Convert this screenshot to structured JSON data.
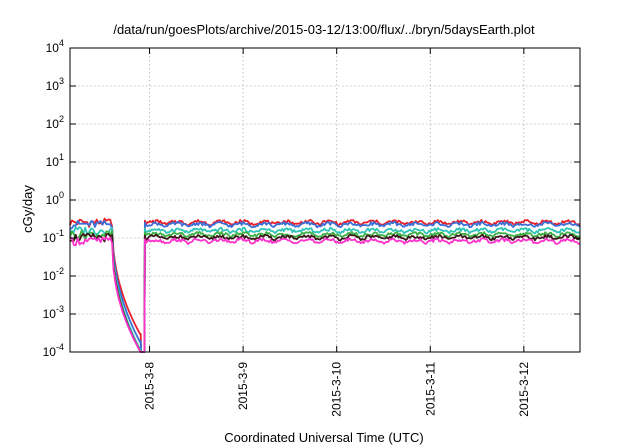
{
  "chart_data": {
    "type": "line",
    "title": "/data/run/goesPlots/archive/2015-03-12/13:00/flux/../bryn/5daysEarth.plot",
    "xlabel": "Coordinated Universal Time (UTC)",
    "ylabel": "cGy/day",
    "yscale": "log",
    "ylim": [
      0.0001,
      10000
    ],
    "xlim": [
      -0.85,
      4.6
    ],
    "x_unit": "days relative to 2015-03-08 00:00 UTC",
    "grid": true,
    "legend": "none",
    "y_ticks": [
      {
        "base": "10",
        "exp": "-4",
        "value": 0.0001
      },
      {
        "base": "10",
        "exp": "-3",
        "value": 0.001
      },
      {
        "base": "10",
        "exp": "-2",
        "value": 0.01
      },
      {
        "base": "10",
        "exp": "-1",
        "value": 0.1
      },
      {
        "base": "10",
        "exp": "0",
        "value": 1
      },
      {
        "base": "10",
        "exp": "1",
        "value": 10
      },
      {
        "base": "10",
        "exp": "2",
        "value": 100
      },
      {
        "base": "10",
        "exp": "3",
        "value": 1000
      },
      {
        "base": "10",
        "exp": "4",
        "value": 10000
      }
    ],
    "x_ticks": [
      {
        "label": "2015-3-8",
        "value": 0
      },
      {
        "label": "2015-3-9",
        "value": 1
      },
      {
        "label": "2015-3-10",
        "value": 2
      },
      {
        "label": "2015-3-11",
        "value": 3
      },
      {
        "label": "2015-3-12",
        "value": 4
      }
    ],
    "series": [
      {
        "color": "#e8202a",
        "base": 0.26,
        "dip": 0.00028,
        "gap_end": 0.0003
      },
      {
        "color": "#3a6fd8",
        "base": 0.23,
        "dip": 0.00017,
        "gap_end": 0.0002
      },
      {
        "color": "#2ec4b6",
        "base": 0.16,
        "dip": 0.00011,
        "gap_end": 0.00012
      },
      {
        "color": "#3cb043",
        "base": 0.125,
        "dip": 0.0001,
        "gap_end": 0.0001
      },
      {
        "color": "#3a1a1a",
        "base": 0.105,
        "dip": 0.0001,
        "gap_end": 0.0001
      },
      {
        "color": "#ff33cc",
        "base": 0.085,
        "dip": 0.0001,
        "gap_end": 0.0001
      }
    ]
  }
}
